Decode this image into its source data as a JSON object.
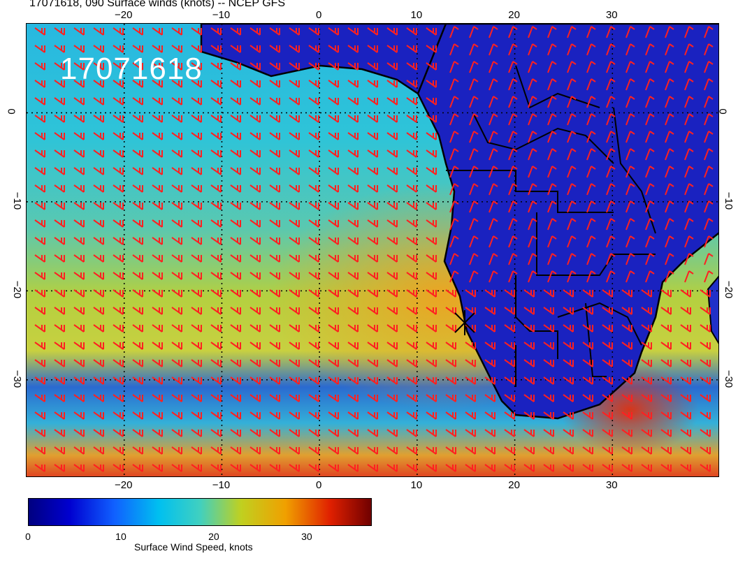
{
  "title": "17071618, 090 Surface winds (knots) -- NCEP GFS",
  "stamp": "17071618",
  "lon_ticks_top": [
    "−20",
    "−10",
    "0",
    "10",
    "20",
    "30"
  ],
  "lon_ticks_bottom": [
    "−20",
    "−10",
    "0",
    "10",
    "20",
    "30"
  ],
  "lat_ticks_left": [
    "0",
    "−10",
    "−20",
    "−30"
  ],
  "lat_ticks_right": [
    "0",
    "−10",
    "−20",
    "−30"
  ],
  "colorbar": {
    "label": "Surface Wind Speed, knots",
    "ticks": [
      "0",
      "10",
      "20",
      "30"
    ],
    "min": 0,
    "max": 37
  },
  "map_extent": {
    "lon_min": -30,
    "lon_max": 41,
    "lat_min": -41,
    "lat_max": 10
  },
  "colors": {
    "barb": "#ff2020",
    "coast": "#000000",
    "land_low": "#1a1ec8"
  }
}
